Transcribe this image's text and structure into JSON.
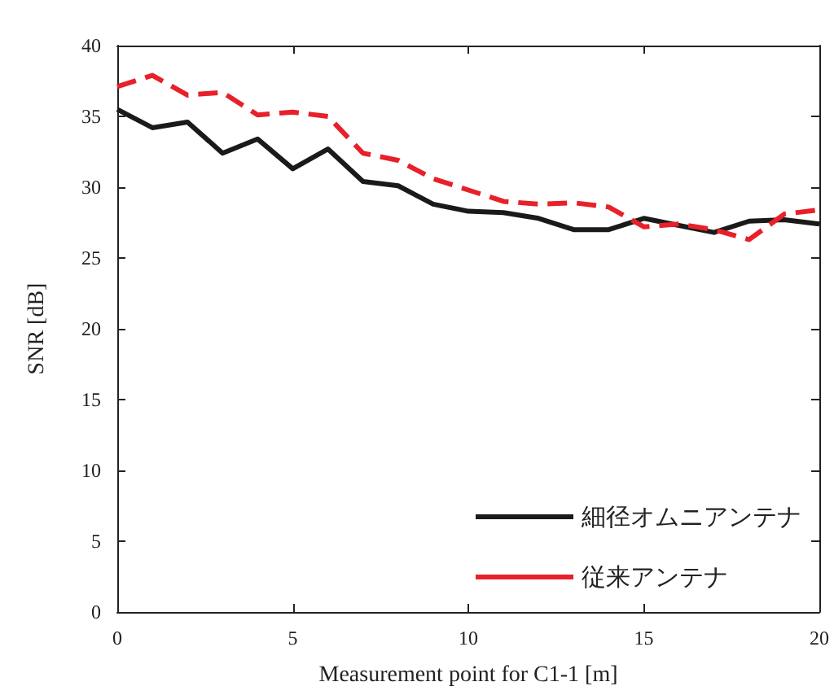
{
  "chart_data": {
    "type": "line",
    "xlabel": "Measurement point for C1-1 [m]",
    "ylabel": "SNR [dB]",
    "x": [
      0,
      1,
      2,
      3,
      4,
      5,
      6,
      7,
      8,
      9,
      10,
      11,
      12,
      13,
      14,
      15,
      16,
      17,
      18,
      19,
      20
    ],
    "series": [
      {
        "name": "細径オムニアンテナ",
        "color": "#1a1a1a",
        "line_style": "solid",
        "values": [
          35.5,
          34.2,
          34.6,
          32.4,
          33.4,
          31.3,
          32.7,
          30.4,
          30.1,
          28.8,
          28.3,
          28.2,
          27.8,
          27.0,
          27.0,
          27.8,
          27.3,
          26.8,
          27.6,
          27.7,
          27.4
        ]
      },
      {
        "name": "従来アンテナ",
        "color": "#e8202a",
        "line_style": "dashed",
        "values": [
          37.1,
          37.9,
          36.5,
          36.7,
          35.1,
          35.3,
          35.0,
          32.4,
          31.9,
          30.6,
          29.8,
          29.0,
          28.8,
          28.9,
          28.6,
          27.2,
          27.4,
          27.0,
          26.3,
          28.1,
          28.4
        ]
      }
    ],
    "xlim": [
      0,
      20
    ],
    "xticks": [
      0,
      5,
      10,
      15,
      20
    ],
    "ylim": [
      0,
      40
    ],
    "yticks": [
      0,
      5,
      10,
      15,
      20,
      25,
      30,
      35,
      40
    ],
    "grid": false,
    "legend": "bottom right",
    "marker": "none"
  }
}
